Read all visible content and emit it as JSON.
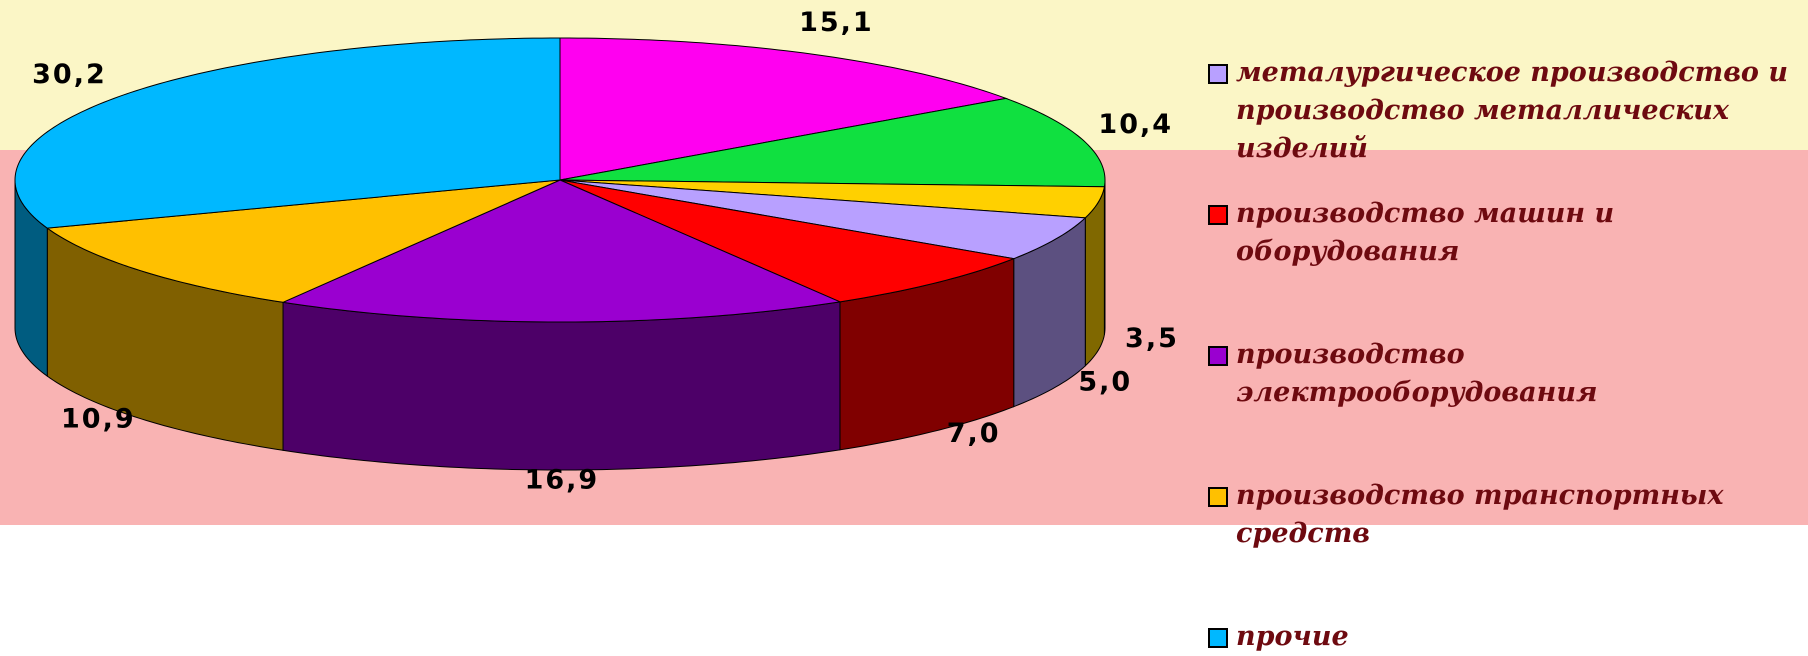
{
  "chart_data": {
    "type": "pie3d",
    "categories": [
      null,
      null,
      null,
      "металургическое производство и производство металлических изделий",
      "производство машин и оборудования",
      "производство электрооборудования",
      "производство транспортных средств",
      "прочие"
    ],
    "values": [
      15.1,
      10.4,
      3.5,
      5.0,
      7.0,
      16.9,
      10.9,
      30.2
    ],
    "value_labels": [
      "15,1",
      "10,4",
      "3,5",
      "5,0",
      "7,0",
      "16,9",
      "10,9",
      "30,2"
    ],
    "colors": [
      "#ff00f0",
      "#10e040",
      "#ffd000",
      "#b8a0ff",
      "#ff0000",
      "#9a00d0",
      "#ffc000",
      "#00b8ff"
    ],
    "legend": "right"
  }
}
